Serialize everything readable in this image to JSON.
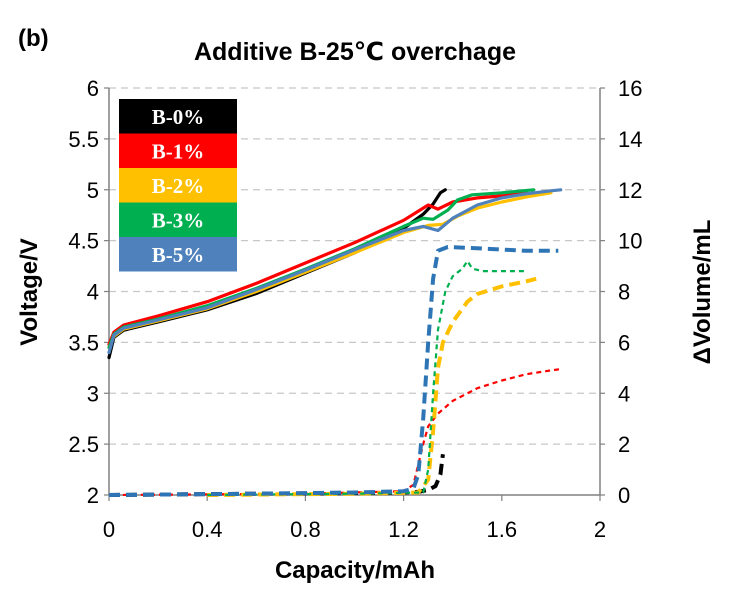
{
  "panel_label": "(b)",
  "chart_data": {
    "type": "line",
    "title": "Additive B-25℃ overchage",
    "xlabel": "Capacity/mAh",
    "ylabel": "Voltage/V",
    "y2label": "ΔVolume/mL",
    "xlim": [
      0,
      2
    ],
    "ylim": [
      2,
      6
    ],
    "y2lim": [
      0,
      16
    ],
    "xticks": [
      "0",
      "0.4",
      "0.8",
      "1.2",
      "1.6",
      "2"
    ],
    "yticks": [
      "2",
      "2.5",
      "3",
      "3.5",
      "4",
      "4.5",
      "5",
      "5.5",
      "6"
    ],
    "y2ticks": [
      "0",
      "2",
      "4",
      "6",
      "8",
      "10",
      "12",
      "14",
      "16"
    ],
    "grid": "horizontal dashed",
    "legend_position": "top-left",
    "legend": [
      {
        "label": "B-0%",
        "color": "#000000"
      },
      {
        "label": "B-1%",
        "color": "#ff0000"
      },
      {
        "label": "B-2%",
        "color": "#ffc000"
      },
      {
        "label": "B-3%",
        "color": "#00b050"
      },
      {
        "label": "B-5%",
        "color": "#4f81bd"
      }
    ],
    "voltage_series": [
      {
        "name": "B-0%",
        "color": "#000000",
        "points": [
          [
            0,
            3.35
          ],
          [
            0.02,
            3.55
          ],
          [
            0.06,
            3.62
          ],
          [
            0.2,
            3.7
          ],
          [
            0.4,
            3.82
          ],
          [
            0.6,
            3.98
          ],
          [
            0.8,
            4.18
          ],
          [
            1.0,
            4.38
          ],
          [
            1.2,
            4.62
          ],
          [
            1.28,
            4.76
          ],
          [
            1.32,
            4.86
          ],
          [
            1.35,
            4.97
          ],
          [
            1.37,
            5.0
          ]
        ]
      },
      {
        "name": "B-1%",
        "color": "#ff0000",
        "points": [
          [
            0,
            3.48
          ],
          [
            0.02,
            3.6
          ],
          [
            0.06,
            3.67
          ],
          [
            0.2,
            3.76
          ],
          [
            0.4,
            3.9
          ],
          [
            0.6,
            4.08
          ],
          [
            0.8,
            4.28
          ],
          [
            1.0,
            4.48
          ],
          [
            1.2,
            4.7
          ],
          [
            1.28,
            4.82
          ],
          [
            1.3,
            4.85
          ],
          [
            1.34,
            4.81
          ],
          [
            1.4,
            4.88
          ],
          [
            1.5,
            4.92
          ],
          [
            1.6,
            4.94
          ],
          [
            1.7,
            4.97
          ]
        ]
      },
      {
        "name": "B-2%",
        "color": "#ffc000",
        "points": [
          [
            0,
            3.45
          ],
          [
            0.02,
            3.56
          ],
          [
            0.06,
            3.63
          ],
          [
            0.2,
            3.71
          ],
          [
            0.4,
            3.83
          ],
          [
            0.6,
            4.0
          ],
          [
            0.8,
            4.19
          ],
          [
            1.0,
            4.38
          ],
          [
            1.2,
            4.58
          ],
          [
            1.3,
            4.65
          ],
          [
            1.36,
            4.66
          ],
          [
            1.42,
            4.74
          ],
          [
            1.5,
            4.82
          ],
          [
            1.6,
            4.88
          ],
          [
            1.7,
            4.93
          ],
          [
            1.8,
            4.97
          ]
        ]
      },
      {
        "name": "B-3%",
        "color": "#00b050",
        "points": [
          [
            0,
            3.45
          ],
          [
            0.02,
            3.58
          ],
          [
            0.06,
            3.65
          ],
          [
            0.2,
            3.73
          ],
          [
            0.4,
            3.86
          ],
          [
            0.6,
            4.03
          ],
          [
            0.8,
            4.22
          ],
          [
            1.0,
            4.42
          ],
          [
            1.2,
            4.64
          ],
          [
            1.28,
            4.72
          ],
          [
            1.32,
            4.71
          ],
          [
            1.38,
            4.8
          ],
          [
            1.42,
            4.9
          ],
          [
            1.48,
            4.95
          ],
          [
            1.6,
            4.97
          ],
          [
            1.73,
            5.0
          ]
        ]
      },
      {
        "name": "B-5%",
        "color": "#4f81bd",
        "points": [
          [
            0,
            3.4
          ],
          [
            0.02,
            3.57
          ],
          [
            0.06,
            3.64
          ],
          [
            0.2,
            3.72
          ],
          [
            0.4,
            3.84
          ],
          [
            0.6,
            4.02
          ],
          [
            0.8,
            4.21
          ],
          [
            1.0,
            4.41
          ],
          [
            1.2,
            4.6
          ],
          [
            1.28,
            4.64
          ],
          [
            1.34,
            4.6
          ],
          [
            1.4,
            4.72
          ],
          [
            1.5,
            4.85
          ],
          [
            1.6,
            4.92
          ],
          [
            1.7,
            4.96
          ],
          [
            1.8,
            4.99
          ],
          [
            1.84,
            5.0
          ]
        ]
      }
    ],
    "volume_series": [
      {
        "name": "B-0%",
        "color": "#000000",
        "style": "thick-dash",
        "points": [
          [
            0,
            0.0
          ],
          [
            0.6,
            0.05
          ],
          [
            1.0,
            0.08
          ],
          [
            1.2,
            0.1
          ],
          [
            1.26,
            0.12
          ],
          [
            1.3,
            0.2
          ],
          [
            1.33,
            0.35
          ],
          [
            1.35,
            0.8
          ],
          [
            1.36,
            1.6
          ]
        ]
      },
      {
        "name": "B-1%",
        "color": "#ff0000",
        "style": "thin-dash",
        "points": [
          [
            0.02,
            0.0
          ],
          [
            0.8,
            0.05
          ],
          [
            1.2,
            0.15
          ],
          [
            1.24,
            0.4
          ],
          [
            1.26,
            1.2
          ],
          [
            1.28,
            2.0
          ],
          [
            1.3,
            2.7
          ],
          [
            1.34,
            3.2
          ],
          [
            1.4,
            3.7
          ],
          [
            1.5,
            4.2
          ],
          [
            1.6,
            4.5
          ],
          [
            1.7,
            4.75
          ],
          [
            1.8,
            4.9
          ],
          [
            1.84,
            4.95
          ]
        ]
      },
      {
        "name": "B-2%",
        "color": "#ffc000",
        "style": "thick-dash",
        "points": [
          [
            0.4,
            0.0
          ],
          [
            1.0,
            0.05
          ],
          [
            1.26,
            0.1
          ],
          [
            1.3,
            0.6
          ],
          [
            1.32,
            2.5
          ],
          [
            1.34,
            5.0
          ],
          [
            1.36,
            6.0
          ],
          [
            1.4,
            6.8
          ],
          [
            1.46,
            7.6
          ],
          [
            1.5,
            7.9
          ],
          [
            1.6,
            8.2
          ],
          [
            1.7,
            8.4
          ],
          [
            1.74,
            8.5
          ]
        ]
      },
      {
        "name": "B-3%",
        "color": "#00b050",
        "style": "thin-dash",
        "points": [
          [
            0.4,
            0.0
          ],
          [
            1.0,
            0.05
          ],
          [
            1.28,
            0.1
          ],
          [
            1.3,
            1.0
          ],
          [
            1.32,
            4.0
          ],
          [
            1.34,
            6.5
          ],
          [
            1.37,
            8.0
          ],
          [
            1.4,
            8.6
          ],
          [
            1.44,
            8.9
          ],
          [
            1.46,
            9.2
          ],
          [
            1.48,
            8.9
          ],
          [
            1.52,
            8.8
          ],
          [
            1.6,
            8.8
          ],
          [
            1.7,
            8.8
          ]
        ]
      },
      {
        "name": "B-5%",
        "color": "#2e75b6",
        "style": "thick-dash",
        "points": [
          [
            0,
            0.0
          ],
          [
            0.6,
            0.05
          ],
          [
            1.0,
            0.1
          ],
          [
            1.2,
            0.15
          ],
          [
            1.24,
            0.25
          ],
          [
            1.26,
            0.8
          ],
          [
            1.28,
            3.0
          ],
          [
            1.3,
            6.0
          ],
          [
            1.32,
            8.5
          ],
          [
            1.34,
            9.6
          ],
          [
            1.38,
            9.75
          ],
          [
            1.5,
            9.7
          ],
          [
            1.7,
            9.6
          ],
          [
            1.83,
            9.6
          ]
        ]
      }
    ]
  }
}
